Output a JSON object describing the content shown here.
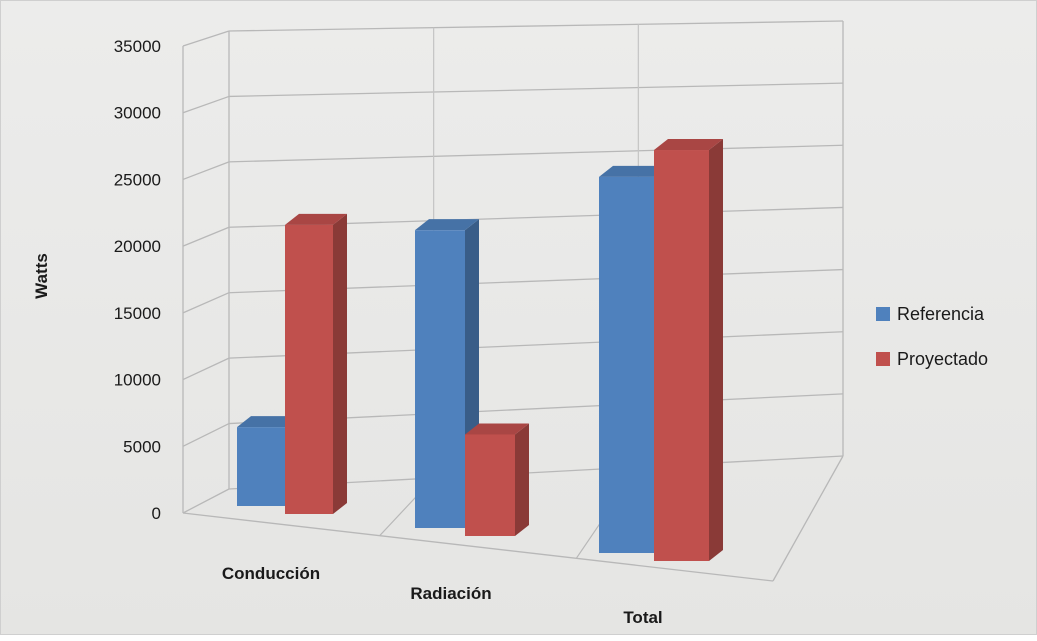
{
  "chart_data": {
    "type": "bar",
    "title": "",
    "xlabel": "",
    "ylabel": "Watts",
    "categories": [
      "Conducción",
      "Radiación",
      "Total"
    ],
    "series": [
      {
        "name": "Referencia",
        "color": "#4f81bd",
        "values": [
          6000,
          22000,
          27000
        ]
      },
      {
        "name": "Proyectado",
        "color": "#c0504d",
        "values": [
          22000,
          7500,
          29500
        ]
      }
    ],
    "ylim": [
      0,
      35000
    ],
    "yticks": [
      0,
      5000,
      10000,
      15000,
      20000,
      25000,
      30000,
      35000
    ],
    "grid": true,
    "legend": "right",
    "style": "3d-clustered-column"
  }
}
